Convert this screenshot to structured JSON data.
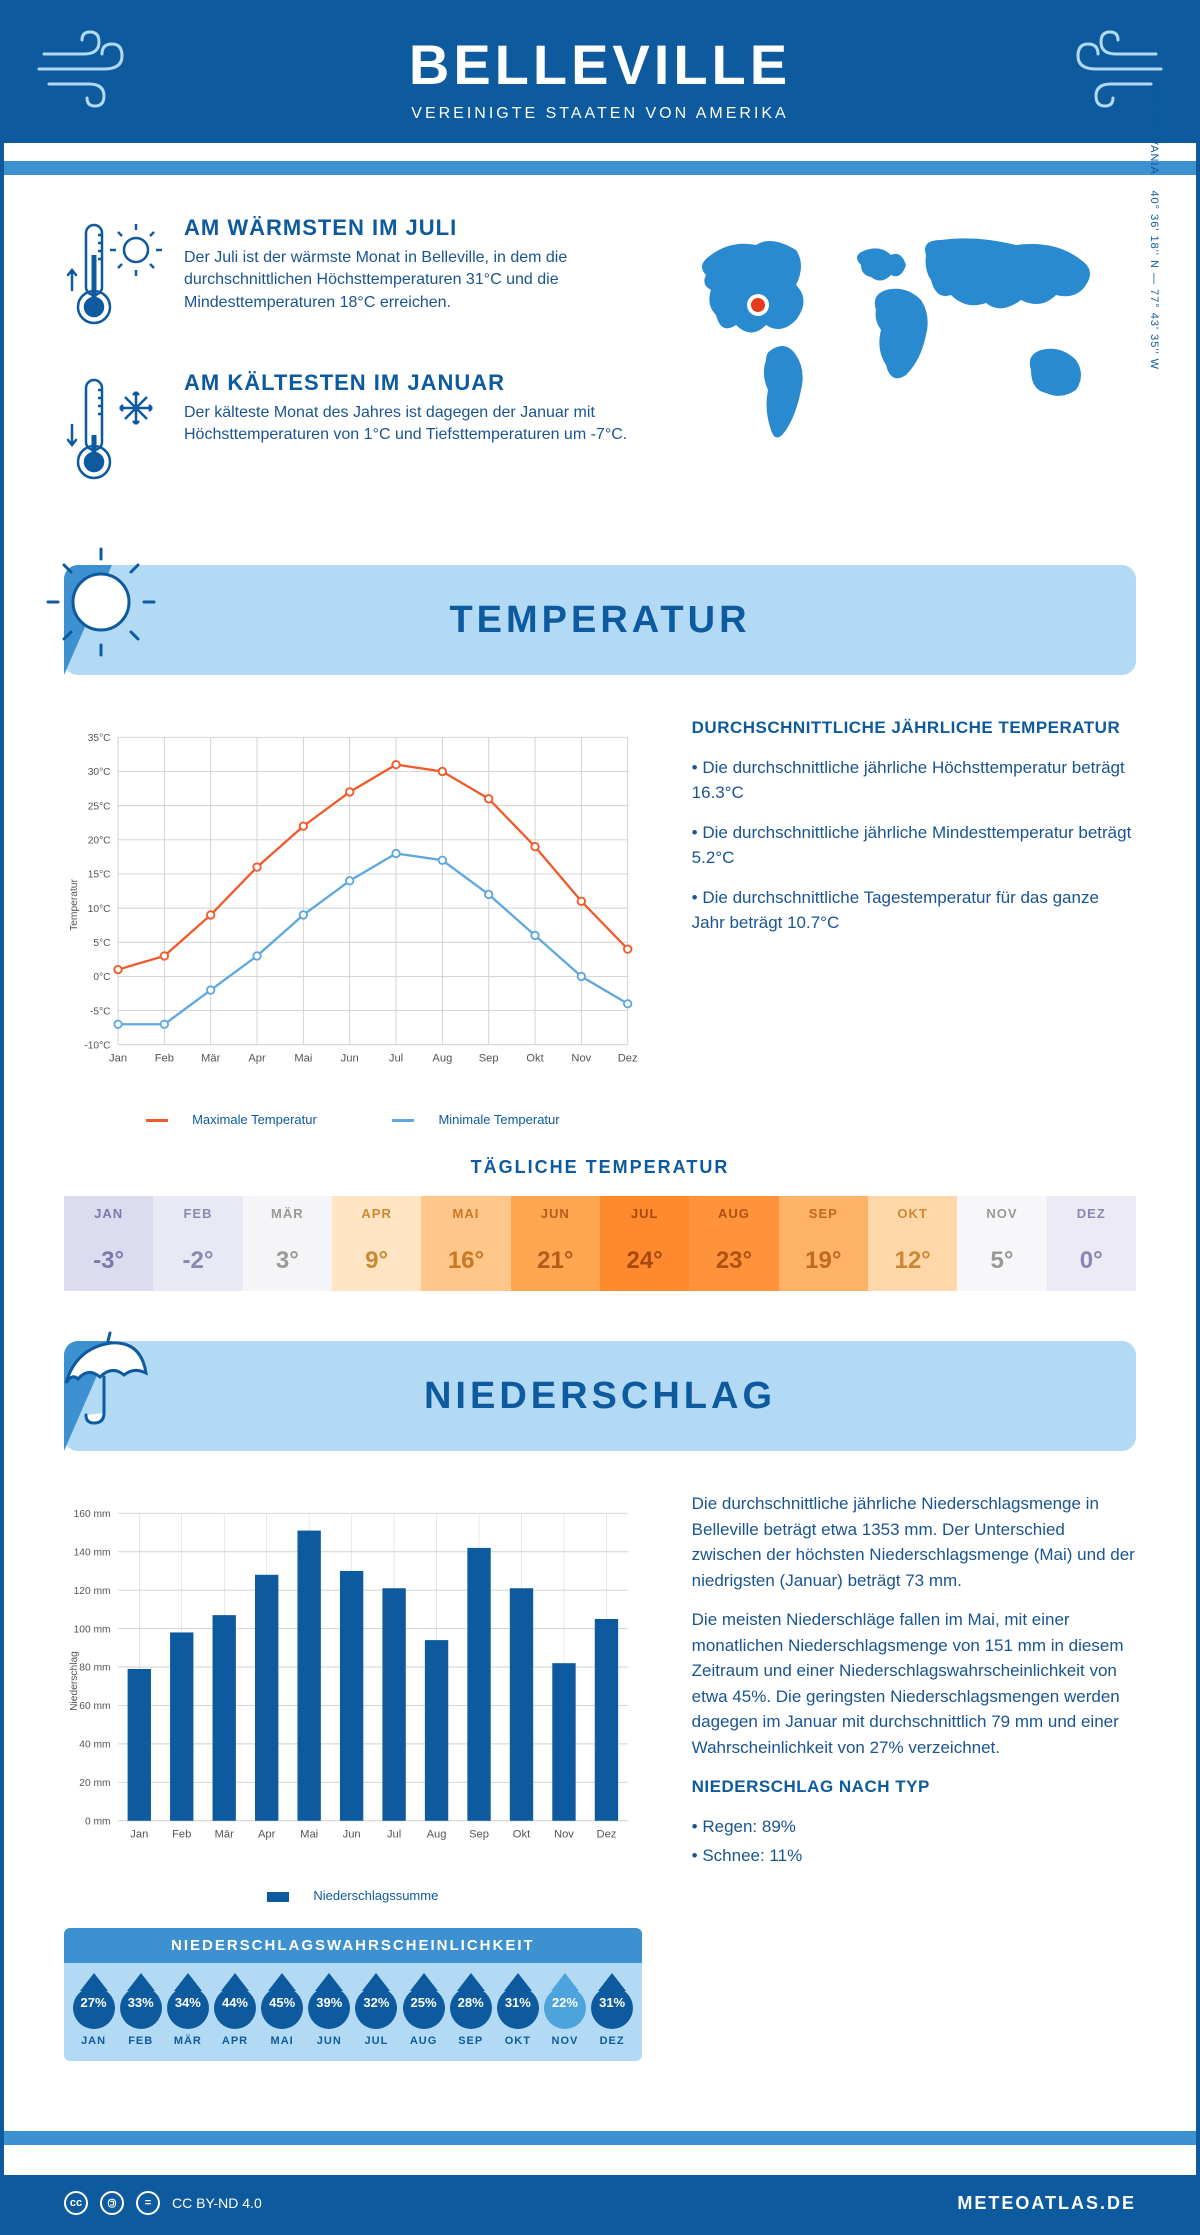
{
  "header": {
    "title": "BELLEVILLE",
    "subtitle": "VEREINIGTE STAATEN VON AMERIKA"
  },
  "colors": {
    "primary": "#0d5a9e",
    "secondary": "#3e91d0",
    "light": "#b3daf5",
    "max_line": "#f15a29",
    "min_line": "#5fa8dd",
    "grid": "#d0d0d0"
  },
  "intro": {
    "warm": {
      "title": "AM WÄRMSTEN IM JULI",
      "text": "Der Juli ist der wärmste Monat in Belleville, in dem die durchschnittlichen Höchsttemperaturen 31°C und die Mindesttemperaturen 18°C erreichen."
    },
    "cold": {
      "title": "AM KÄLTESTEN IM JANUAR",
      "text": "Der kälteste Monat des Jahres ist dagegen der Januar mit Höchsttemperaturen von 1°C und Tiefsttemperaturen um -7°C."
    },
    "coords": "40° 36' 18'' N — 77° 43' 35'' W",
    "region": "PENNSYLVANIA"
  },
  "temperature": {
    "banner": "TEMPERATUR",
    "chart": {
      "type": "line",
      "months": [
        "Jan",
        "Feb",
        "Mär",
        "Apr",
        "Mai",
        "Jun",
        "Jul",
        "Aug",
        "Sep",
        "Okt",
        "Nov",
        "Dez"
      ],
      "max_values": [
        1,
        3,
        9,
        16,
        22,
        27,
        31,
        30,
        26,
        19,
        11,
        4
      ],
      "min_values": [
        -7,
        -7,
        -2,
        3,
        9,
        14,
        18,
        17,
        12,
        6,
        0,
        -4
      ],
      "ylim": [
        -10,
        35
      ],
      "ytick_step": 5,
      "ylabel": "Temperatur",
      "legend_max": "Maximale Temperatur",
      "legend_min": "Minimale Temperatur",
      "line_width": 2.5,
      "marker": "circle",
      "marker_size": 4
    },
    "side": {
      "heading": "DURCHSCHNITTLICHE JÄHRLICHE TEMPERATUR",
      "b1": "• Die durchschnittliche jährliche Höchsttemperatur beträgt 16.3°C",
      "b2": "• Die durchschnittliche jährliche Mindesttemperatur beträgt 5.2°C",
      "b3": "• Die durchschnittliche Tagestemperatur für das ganze Jahr beträgt 10.7°C"
    },
    "daily": {
      "title": "TÄGLICHE TEMPERATUR",
      "months": [
        "JAN",
        "FEB",
        "MÄR",
        "APR",
        "MAI",
        "JUN",
        "JUL",
        "AUG",
        "SEP",
        "OKT",
        "NOV",
        "DEZ"
      ],
      "values": [
        "-3°",
        "-2°",
        "3°",
        "9°",
        "16°",
        "21°",
        "24°",
        "23°",
        "19°",
        "12°",
        "5°",
        "0°"
      ],
      "bg_colors": [
        "#dcdcf0",
        "#e9e9f5",
        "#f5f5f8",
        "#ffe5c4",
        "#ffc68a",
        "#ffa651",
        "#ff8a2e",
        "#ff933c",
        "#ffb368",
        "#ffd7a8",
        "#f7f7fa",
        "#ecebf5"
      ],
      "txt_colors": [
        "#7a7aa8",
        "#8888b0",
        "#999999",
        "#cc8833",
        "#cc7722",
        "#b85a1a",
        "#a84810",
        "#b05014",
        "#c06a22",
        "#cc8833",
        "#999999",
        "#8888b0"
      ]
    }
  },
  "precipitation": {
    "banner": "NIEDERSCHLAG",
    "chart": {
      "type": "bar",
      "months": [
        "Jan",
        "Feb",
        "Mär",
        "Apr",
        "Mai",
        "Jun",
        "Jul",
        "Aug",
        "Sep",
        "Okt",
        "Nov",
        "Dez"
      ],
      "values": [
        79,
        98,
        107,
        128,
        151,
        130,
        121,
        94,
        142,
        121,
        82,
        105
      ],
      "ylim": [
        0,
        160
      ],
      "ytick_step": 20,
      "ylabel": "Niederschlag",
      "bar_color": "#0d5a9e",
      "legend": "Niederschlagssumme",
      "bar_width": 0.55
    },
    "text": {
      "p1": "Die durchschnittliche jährliche Niederschlagsmenge in Belleville beträgt etwa 1353 mm. Der Unterschied zwischen der höchsten Niederschlagsmenge (Mai) und der niedrigsten (Januar) beträgt 73 mm.",
      "p2": "Die meisten Niederschläge fallen im Mai, mit einer monatlichen Niederschlagsmenge von 151 mm in diesem Zeitraum und einer Niederschlagswahrscheinlichkeit von etwa 45%. Die geringsten Niederschlagsmengen werden dagegen im Januar mit durchschnittlich 79 mm und einer Wahrscheinlichkeit von 27% verzeichnet.",
      "type_heading": "NIEDERSCHLAG NACH TYP",
      "type_rain": "• Regen: 89%",
      "type_snow": "• Schnee: 11%"
    },
    "probability": {
      "title": "NIEDERSCHLAGSWAHRSCHEINLICHKEIT",
      "months": [
        "JAN",
        "FEB",
        "MÄR",
        "APR",
        "MAI",
        "JUN",
        "JUL",
        "AUG",
        "SEP",
        "OKT",
        "NOV",
        "DEZ"
      ],
      "values": [
        "27%",
        "33%",
        "34%",
        "44%",
        "45%",
        "39%",
        "32%",
        "25%",
        "28%",
        "31%",
        "22%",
        "31%"
      ],
      "low_index": 10
    }
  },
  "footer": {
    "license": "CC BY-ND 4.0",
    "site": "METEOATLAS.DE"
  }
}
